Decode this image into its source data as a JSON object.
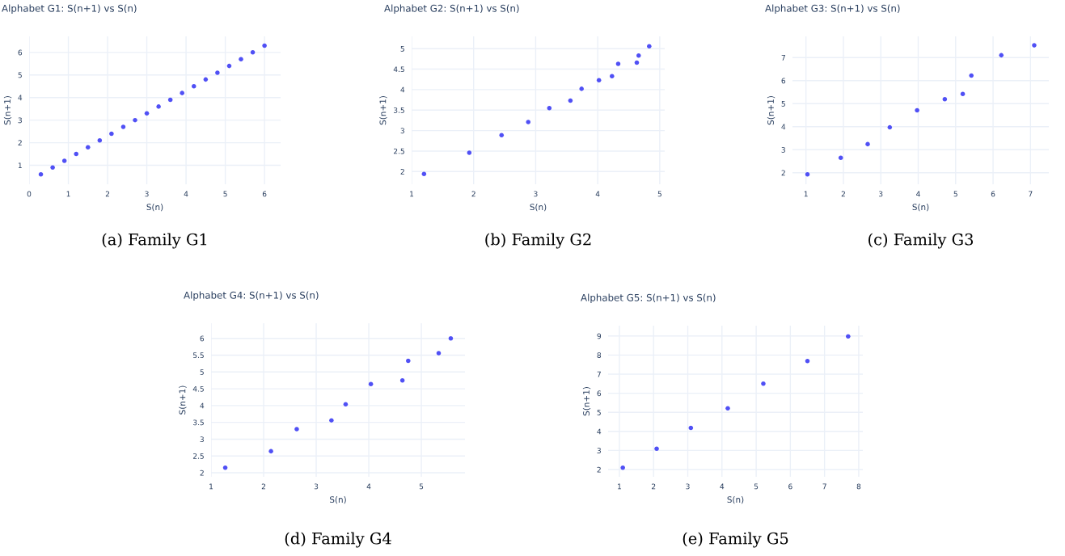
{
  "chart_data": [
    {
      "type": "scatter",
      "title": "Alphabet G1: S(n+1) vs S(n)",
      "xlabel": "S(n)",
      "ylabel": "S(n+1)",
      "annotations": [
        "(a) Family G1"
      ],
      "grid": true,
      "marker": "circle",
      "xlim": [
        0,
        6.41
      ],
      "ylim": [
        0.16,
        6.71
      ],
      "xticks": [
        0,
        1,
        2,
        3,
        4,
        5,
        6
      ],
      "yticks": [
        1,
        2,
        3,
        4,
        5,
        6
      ],
      "series": [
        {
          "color": "#5050f5",
          "x": [
            0.3,
            0.6,
            0.9,
            1.2,
            1.5,
            1.8,
            2.1,
            2.4,
            2.7,
            3.0,
            3.3,
            3.6,
            3.9,
            4.2,
            4.5,
            4.8,
            5.1,
            5.4,
            5.7,
            6.0
          ],
          "values": [
            0.6,
            0.9,
            1.2,
            1.5,
            1.8,
            2.1,
            2.4,
            2.7,
            3.0,
            3.3,
            3.6,
            3.9,
            4.2,
            4.5,
            4.8,
            5.1,
            5.4,
            5.7,
            6.0,
            6.3
          ]
        }
      ]
    },
    {
      "type": "scatter",
      "title": "Alphabet G2: S(n+1) vs S(n)",
      "xlabel": "S(n)",
      "ylabel": "S(n+1)",
      "annotations": [
        "(b) Family G2"
      ],
      "grid": true,
      "marker": "circle",
      "xlim": [
        1.0,
        5.08
      ],
      "ylim": [
        1.69,
        5.3
      ],
      "xticks": [
        1,
        2,
        3,
        4,
        5
      ],
      "yticks": [
        2,
        2.5,
        3,
        3.5,
        4,
        4.5,
        5
      ],
      "series": [
        {
          "color": "#5050f5",
          "x": [
            1.2,
            1.93,
            2.45,
            2.88,
            3.22,
            3.56,
            3.74,
            4.02,
            4.23,
            4.33,
            4.63,
            4.66,
            4.83
          ],
          "values": [
            1.94,
            2.46,
            2.89,
            3.21,
            3.55,
            3.73,
            4.02,
            4.23,
            4.33,
            4.63,
            4.66,
            4.83,
            5.06
          ]
        }
      ]
    },
    {
      "type": "scatter",
      "title": "Alphabet G3: S(n+1) vs S(n)",
      "xlabel": "S(n)",
      "ylabel": "S(n+1)",
      "annotations": [
        "(c) Family G3"
      ],
      "grid": true,
      "marker": "circle",
      "xlim": [
        0.64,
        7.49
      ],
      "ylim": [
        1.5,
        7.92
      ],
      "xticks": [
        1,
        2,
        3,
        4,
        5,
        6,
        7
      ],
      "yticks": [
        2,
        3,
        4,
        5,
        6,
        7
      ],
      "series": [
        {
          "color": "#5050f5",
          "x": [
            1.04,
            1.93,
            2.65,
            3.24,
            3.97,
            4.71,
            5.19,
            5.42,
            6.22,
            7.1
          ],
          "values": [
            1.93,
            2.65,
            3.24,
            3.97,
            4.71,
            5.19,
            5.42,
            6.22,
            7.1,
            7.53
          ]
        }
      ]
    },
    {
      "type": "scatter",
      "title": "Alphabet G4: S(n+1) vs S(n)",
      "xlabel": "S(n)",
      "ylabel": "S(n+1)",
      "annotations": [
        "(d) Family G4"
      ],
      "grid": true,
      "marker": "circle",
      "xlim": [
        1.0,
        5.83
      ],
      "ylim": [
        1.88,
        6.45
      ],
      "xticks": [
        1,
        2,
        3,
        4,
        5
      ],
      "yticks": [
        2,
        2.5,
        3,
        3.5,
        4,
        4.5,
        5,
        5.5,
        6
      ],
      "series": [
        {
          "color": "#5050f5",
          "x": [
            1.27,
            2.14,
            2.63,
            3.29,
            3.56,
            4.04,
            4.64,
            4.75,
            5.33,
            5.56
          ],
          "values": [
            2.15,
            2.64,
            3.3,
            3.56,
            4.04,
            4.64,
            4.75,
            5.33,
            5.56,
            6.0
          ]
        }
      ]
    },
    {
      "type": "scatter",
      "title": "Alphabet G5: S(n+1) vs S(n)",
      "xlabel": "S(n)",
      "ylabel": "S(n+1)",
      "annotations": [
        "(e) Family G5"
      ],
      "grid": true,
      "marker": "circle",
      "xlim": [
        0.67,
        8.12
      ],
      "ylim": [
        1.62,
        9.54
      ],
      "xticks": [
        1,
        2,
        3,
        4,
        5,
        6,
        7,
        8
      ],
      "yticks": [
        2,
        3,
        4,
        5,
        6,
        7,
        8,
        9
      ],
      "series": [
        {
          "color": "#5050f5",
          "x": [
            1.1,
            2.09,
            3.09,
            4.17,
            5.21,
            6.5,
            7.69
          ],
          "values": [
            2.1,
            3.09,
            4.18,
            5.21,
            6.5,
            7.69,
            8.98
          ]
        }
      ]
    }
  ]
}
